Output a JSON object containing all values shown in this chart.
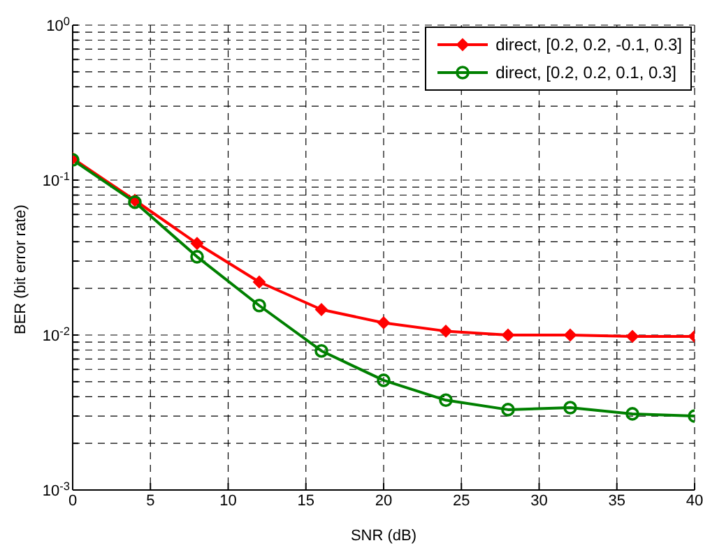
{
  "chart_data": {
    "type": "line",
    "xlabel": "SNR (dB)",
    "ylabel": "BER (bit error rate)",
    "x": [
      0,
      4,
      8,
      12,
      16,
      20,
      24,
      28,
      32,
      36,
      40
    ],
    "series": [
      {
        "name": "direct, [0.2, 0.2, -0.1, 0.3]",
        "color": "#ff0000",
        "marker": "diamond",
        "values": [
          0.138,
          0.074,
          0.039,
          0.022,
          0.0146,
          0.012,
          0.0106,
          0.01,
          0.01,
          0.0098,
          0.0098
        ]
      },
      {
        "name": "direct, [0.2, 0.2, 0.1, 0.3]",
        "color": "#008000",
        "marker": "circle",
        "values": [
          0.135,
          0.072,
          0.032,
          0.0155,
          0.0079,
          0.0051,
          0.0038,
          0.0033,
          0.0034,
          0.0031,
          0.003
        ]
      }
    ],
    "log": "y",
    "xlim": [
      0,
      40
    ],
    "xticks": [
      0,
      5,
      10,
      15,
      20,
      25,
      30,
      35,
      40
    ],
    "ylim": [
      0.001,
      1
    ],
    "yticks": [
      {
        "value": 0.001,
        "label": "10$^{-3}$"
      },
      {
        "value": 0.002,
        "label": null
      },
      {
        "value": 0.003,
        "label": null
      },
      {
        "value": 0.004,
        "label": null
      },
      {
        "value": 0.005,
        "label": null
      },
      {
        "value": 0.006,
        "label": null
      },
      {
        "value": 0.007,
        "label": null
      },
      {
        "value": 0.008,
        "label": null
      },
      {
        "value": 0.009,
        "label": null
      },
      {
        "value": 0.01,
        "label": "10$^{-2}$"
      },
      {
        "value": 0.02,
        "label": null
      },
      {
        "value": 0.03,
        "label": null
      },
      {
        "value": 0.04,
        "label": null
      },
      {
        "value": 0.05,
        "label": null
      },
      {
        "value": 0.06,
        "label": null
      },
      {
        "value": 0.07,
        "label": null
      },
      {
        "value": 0.08,
        "label": null
      },
      {
        "value": 0.09,
        "label": null
      },
      {
        "value": 0.1,
        "label": "10$^{-1}$"
      },
      {
        "value": 0.2,
        "label": null
      },
      {
        "value": 0.3,
        "label": null
      },
      {
        "value": 0.4,
        "label": null
      },
      {
        "value": 0.5,
        "label": null
      },
      {
        "value": 0.6,
        "label": null
      },
      {
        "value": 0.7,
        "label": null
      },
      {
        "value": 0.8,
        "label": null
      },
      {
        "value": 0.9,
        "label": null
      },
      {
        "value": 1,
        "label": "10$^{0}$"
      }
    ],
    "grid": true,
    "legend": "top right",
    "line_style": "solid"
  }
}
